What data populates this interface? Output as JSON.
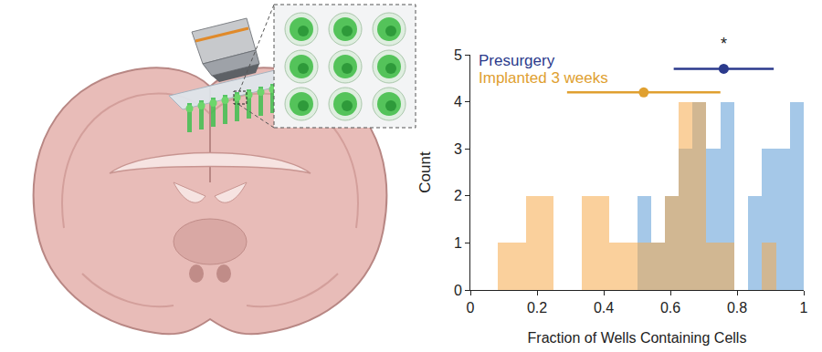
{
  "chart_data": {
    "type": "histogram",
    "xlabel": "Fraction of Wells Containing Cells",
    "ylabel": "Count",
    "xlim": [
      0,
      1
    ],
    "xticks": [
      0,
      0.2,
      0.4,
      0.6,
      0.8,
      1
    ],
    "ylim": [
      0,
      5
    ],
    "yticks": [
      0,
      1,
      2,
      3,
      4,
      5
    ],
    "grid": false,
    "bins": [
      0.083,
      0.125,
      0.167,
      0.208,
      0.25,
      0.292,
      0.333,
      0.375,
      0.417,
      0.458,
      0.5,
      0.542,
      0.583,
      0.625,
      0.667,
      0.708,
      0.75,
      0.792,
      0.833,
      0.875,
      0.917,
      0.958,
      1.0
    ],
    "series": [
      {
        "name": "Presurgery",
        "color": "#2b3a8c",
        "bar_color": "#5b9bd5",
        "values": [
          0,
          0,
          0,
          0,
          0,
          0,
          0,
          0,
          0,
          0,
          2,
          1,
          2,
          3,
          4,
          3,
          4,
          0,
          2,
          3,
          3,
          4
        ],
        "summary": {
          "mean": 0.76,
          "sd": 0.15,
          "y": 4.7
        }
      },
      {
        "name": "Implanted 3 weeks",
        "color": "#e0a030",
        "bar_color": "#f5a94a",
        "values": [
          1,
          1,
          2,
          2,
          0,
          0,
          2,
          2,
          1,
          1,
          1,
          1,
          2,
          4,
          4,
          1,
          1,
          0,
          0,
          1,
          0,
          0
        ],
        "summary": {
          "mean": 0.52,
          "sd": 0.23,
          "y": 4.2
        }
      }
    ],
    "annotations": [
      {
        "text": "*",
        "x": 0.76,
        "y": 5.0
      }
    ]
  }
}
